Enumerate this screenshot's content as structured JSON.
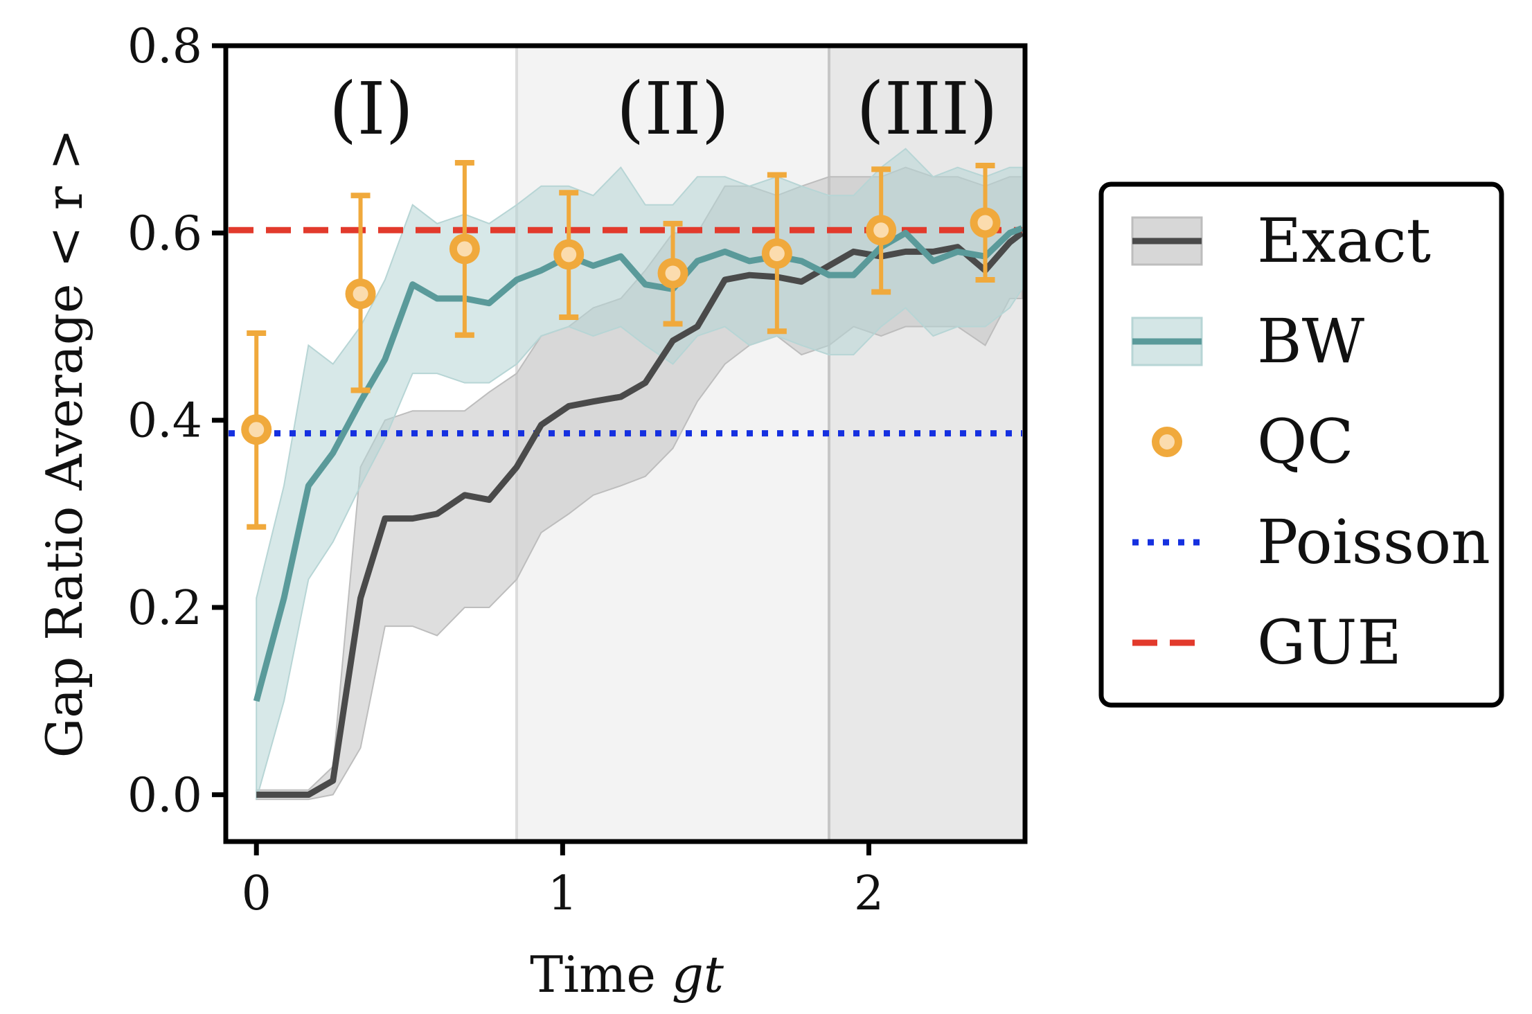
{
  "chart_data": {
    "type": "line",
    "xlabel": "Time",
    "xlabel_italic": "gt",
    "ylabel": "Gap Ratio Average < r >",
    "xlim": [
      -0.1,
      2.51
    ],
    "ylim": [
      -0.05,
      0.8
    ],
    "x_ticks": [
      0,
      1,
      2
    ],
    "y_ticks": [
      0.0,
      0.2,
      0.4,
      0.6,
      0.8
    ],
    "regions": [
      {
        "label": "(I)",
        "x0": -0.1,
        "x1": 0.85,
        "color": "#ffffff"
      },
      {
        "label": "(II)",
        "x0": 0.85,
        "x1": 1.87,
        "color": "#f3f3f3"
      },
      {
        "label": "(III)",
        "x0": 1.87,
        "x1": 2.51,
        "color": "#e8e8e8"
      }
    ],
    "reference_lines": [
      {
        "name": "Poisson",
        "y": 0.386,
        "color": "#1530e0",
        "style": "dotted"
      },
      {
        "name": "GUE",
        "y": 0.603,
        "color": "#e23a2c",
        "style": "dashed"
      }
    ],
    "series": [
      {
        "name": "Exact",
        "color": "#4a4a4a",
        "band_color": "#bdbdbd",
        "x": [
          0,
          0.09,
          0.17,
          0.25,
          0.34,
          0.42,
          0.51,
          0.59,
          0.68,
          0.76,
          0.85,
          0.93,
          1.02,
          1.1,
          1.19,
          1.27,
          1.36,
          1.44,
          1.53,
          1.61,
          1.7,
          1.78,
          1.87,
          1.95,
          2.04,
          2.12,
          2.21,
          2.29,
          2.38,
          2.46,
          2.5
        ],
        "values": [
          0.0,
          0.0,
          0.0,
          0.015,
          0.21,
          0.295,
          0.295,
          0.3,
          0.32,
          0.315,
          0.35,
          0.395,
          0.415,
          0.42,
          0.425,
          0.44,
          0.485,
          0.5,
          0.55,
          0.555,
          0.553,
          0.548,
          0.565,
          0.58,
          0.575,
          0.58,
          0.58,
          0.585,
          0.56,
          0.59,
          0.6
        ],
        "lower": [
          -0.005,
          -0.005,
          -0.005,
          0.0,
          0.05,
          0.18,
          0.18,
          0.17,
          0.2,
          0.2,
          0.23,
          0.28,
          0.3,
          0.32,
          0.33,
          0.34,
          0.37,
          0.42,
          0.46,
          0.48,
          0.49,
          0.47,
          0.48,
          0.5,
          0.49,
          0.5,
          0.5,
          0.5,
          0.48,
          0.53,
          0.53
        ],
        "upper": [
          0.005,
          0.005,
          0.005,
          0.03,
          0.35,
          0.4,
          0.41,
          0.41,
          0.41,
          0.43,
          0.45,
          0.49,
          0.5,
          0.52,
          0.53,
          0.56,
          0.6,
          0.6,
          0.65,
          0.65,
          0.64,
          0.65,
          0.66,
          0.66,
          0.66,
          0.67,
          0.66,
          0.66,
          0.65,
          0.66,
          0.66
        ]
      },
      {
        "name": "BW",
        "color": "#5a9a9a",
        "band_color": "#b7d5d5",
        "x": [
          0,
          0.09,
          0.17,
          0.25,
          0.34,
          0.42,
          0.51,
          0.59,
          0.68,
          0.76,
          0.85,
          0.93,
          1.02,
          1.1,
          1.19,
          1.27,
          1.36,
          1.44,
          1.53,
          1.61,
          1.7,
          1.78,
          1.87,
          1.95,
          2.04,
          2.12,
          2.21,
          2.29,
          2.38,
          2.46,
          2.5
        ],
        "values": [
          0.1,
          0.21,
          0.33,
          0.365,
          0.42,
          0.465,
          0.545,
          0.53,
          0.53,
          0.525,
          0.55,
          0.56,
          0.575,
          0.565,
          0.575,
          0.545,
          0.54,
          0.57,
          0.58,
          0.57,
          0.575,
          0.57,
          0.555,
          0.555,
          0.585,
          0.6,
          0.57,
          0.58,
          0.575,
          0.6,
          0.605
        ],
        "lower": [
          -0.005,
          0.1,
          0.23,
          0.27,
          0.33,
          0.38,
          0.45,
          0.45,
          0.44,
          0.44,
          0.46,
          0.49,
          0.5,
          0.49,
          0.5,
          0.48,
          0.46,
          0.49,
          0.5,
          0.48,
          0.49,
          0.48,
          0.47,
          0.47,
          0.5,
          0.52,
          0.49,
          0.5,
          0.5,
          0.52,
          0.54
        ],
        "upper": [
          0.21,
          0.33,
          0.48,
          0.46,
          0.5,
          0.55,
          0.63,
          0.61,
          0.62,
          0.61,
          0.63,
          0.65,
          0.65,
          0.64,
          0.67,
          0.63,
          0.63,
          0.66,
          0.66,
          0.65,
          0.66,
          0.65,
          0.64,
          0.64,
          0.67,
          0.69,
          0.66,
          0.67,
          0.66,
          0.67,
          0.67
        ]
      },
      {
        "name": "QC",
        "color": "#f0a93c",
        "x": [
          0.0,
          0.34,
          0.68,
          1.02,
          1.36,
          1.7,
          2.04,
          2.38
        ],
        "values": [
          0.39,
          0.535,
          0.583,
          0.577,
          0.557,
          0.578,
          0.603,
          0.611
        ],
        "err_low": [
          0.286,
          0.432,
          0.491,
          0.51,
          0.503,
          0.495,
          0.537,
          0.55
        ],
        "err_high": [
          0.493,
          0.64,
          0.675,
          0.643,
          0.61,
          0.662,
          0.668,
          0.672
        ]
      }
    ],
    "legend": {
      "position": "right",
      "entries": [
        "Exact",
        "BW",
        "QC",
        "Poisson",
        "GUE"
      ]
    }
  }
}
